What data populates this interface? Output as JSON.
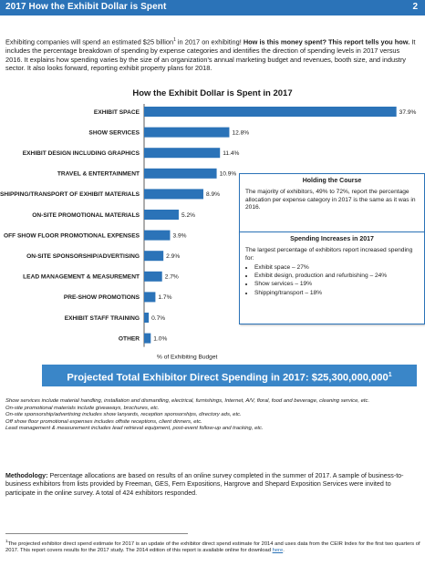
{
  "header": {
    "title": "2017 How the Exhibit Dollar is Spent",
    "page": "2"
  },
  "intro": {
    "part1": "Exhibiting companies will spend an estimated $25 billion",
    "sup": "1",
    "part2": " in 2017 on exhibiting! ",
    "bold": "How is this money spent? This report tells you how.",
    "part3": " It includes the percentage breakdown of spending by expense categories and identifies the direction of spending levels in 2017 versus 2016. It explains how spending varies by the size of an organization's annual marketing budget and revenues, booth size, and industry sector. It also looks forward, reporting exhibit property plans for 2018."
  },
  "chart_data": {
    "type": "bar",
    "orientation": "horizontal",
    "title": "How the Exhibit Dollar is Spent in 2017",
    "xlabel": "% of Exhibiting Budget",
    "ylabel": "",
    "categories": [
      "EXHIBIT SPACE",
      "SHOW SERVICES",
      "EXHIBIT DESIGN INCLUDING GRAPHICS",
      "TRAVEL & ENTERTAINMENT",
      "SHIPPING/TRANSPORT OF EXHIBIT MATERIALS",
      "ON-SITE PROMOTIONAL MATERIALS",
      "OFF SHOW FLOOR PROMOTIONAL EXPENSES",
      "ON-SITE SPONSORSHIP/ADVERTISING",
      "LEAD MANAGEMENT & MEASUREMENT",
      "PRE-SHOW PROMOTIONS",
      "EXHIBIT STAFF TRAINING",
      "OTHER"
    ],
    "values": [
      37.9,
      12.8,
      11.4,
      10.9,
      8.9,
      5.2,
      3.9,
      2.9,
      2.7,
      1.7,
      0.7,
      1.0
    ],
    "value_labels": [
      "37.9%",
      "12.8%",
      "11.4%",
      "10.9%",
      "8.9%",
      "5.2%",
      "3.9%",
      "2.9%",
      "2.7%",
      "1.7%",
      "0.7%",
      "1.0%"
    ],
    "xlim": [
      0,
      40
    ],
    "grid": false,
    "bar_color": "#2b73b8"
  },
  "holding": {
    "title": "Holding the Course",
    "text": "The majority of exhibitors, 49% to 72%, report the percentage allocation per expense category in 2017 is the same as it was in 2016."
  },
  "increases": {
    "title": "Spending Increases in 2017",
    "text": "The largest percentage of exhibitors report increased spending for:",
    "items": [
      "Exhibit space – 27%",
      "Exhibit design, production and refurbishing – 24%",
      "Show services – 19%",
      "Shipping/transport – 18%"
    ]
  },
  "banner": {
    "text": "Projected Total Exhibitor Direct Spending in 2017: $25,300,000,000",
    "sup": "1"
  },
  "notes": [
    "Show services include material handling, installation and dismantling, electrical, furnishings, Internet, A/V, floral, food and beverage, cleaning service, etc.",
    "On-site promotional materials include giveaways, brochures, etc.",
    "On-site sponsorship/advertising includes show lanyards, reception sponsorships, directory ads, etc.",
    "Off show floor promotional expenses includes offsite receptions, client dinners, etc.",
    "Lead management & measurement includes lead retrieval equipment, post-event follow-up and tracking, etc."
  ],
  "methodology": {
    "label": "Methodology:",
    "text": " Percentage allocations are based on results of an online survey completed in the summer of 2017. A sample of business-to-business exhibitors from lists provided by Freeman, GES, Fern Expositions, Hargrove and Shepard Exposition Services were invited to participate in the online survey. A total of 424 exhibitors responded."
  },
  "footnote": {
    "sup": "1",
    "text": "The projected exhibitor direct spend estimate for 2017 is an update of the exhibitor direct spend estimate for 2014 and uses data from the CEIR Index for the first two quarters of 2017. This report covers results for the 2017 study. The 2014 edition of this report is available online for download ",
    "link": "here",
    "end": "."
  },
  "colors": {
    "brand_blue": "#2b73b8",
    "banner_blue": "#3a86c8"
  }
}
